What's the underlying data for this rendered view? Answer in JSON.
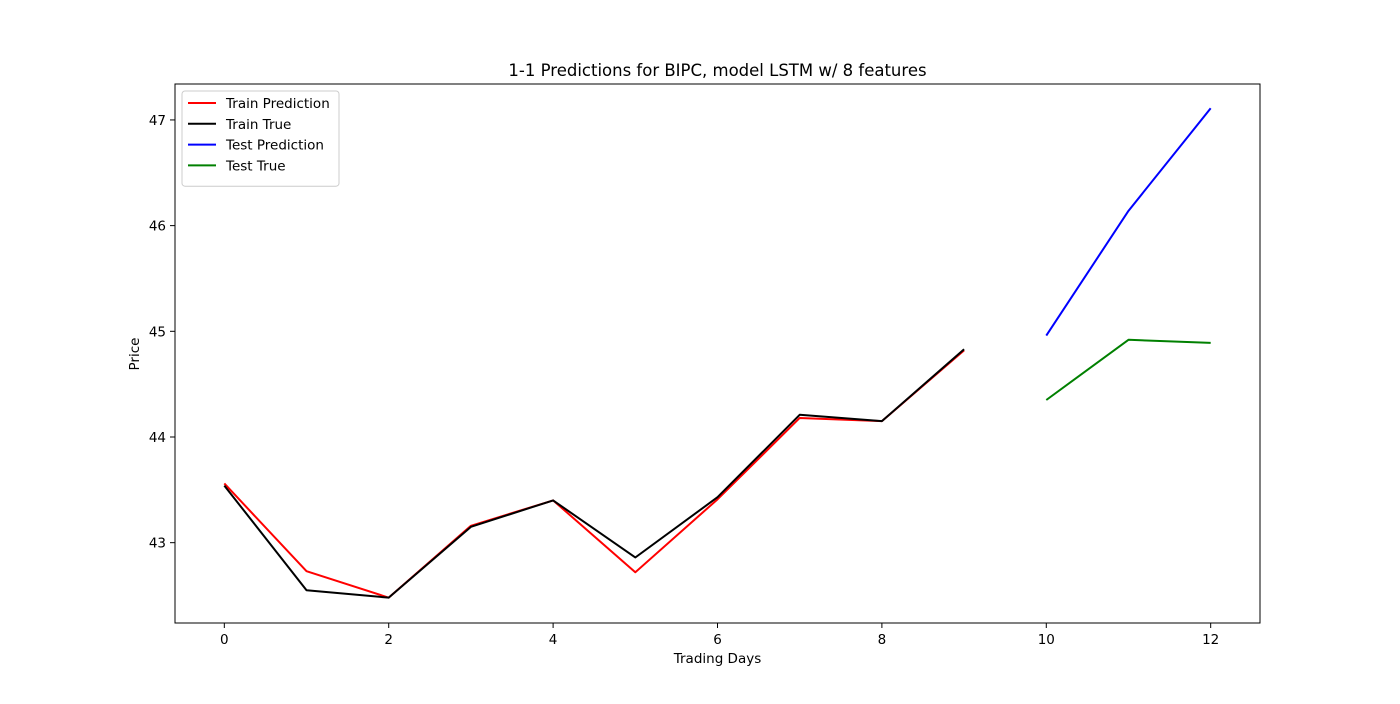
{
  "chart_data": {
    "type": "line",
    "title": "1-1 Predictions for BIPC, model LSTM w/ 8 features",
    "xlabel": "Trading Days",
    "ylabel": "Price",
    "xlim": [
      -0.6,
      12.6
    ],
    "ylim": [
      42.24,
      47.34
    ],
    "xticks": [
      0,
      2,
      4,
      6,
      8,
      10,
      12
    ],
    "yticks": [
      43,
      44,
      45,
      46,
      47
    ],
    "grid": false,
    "legend_position": "upper left",
    "series": [
      {
        "name": "Train Prediction",
        "color": "#ff0000",
        "x": [
          0,
          1,
          2,
          3,
          4,
          5,
          6,
          7,
          8,
          9
        ],
        "y": [
          43.56,
          42.73,
          42.48,
          43.16,
          43.4,
          42.72,
          43.41,
          44.18,
          44.15,
          44.82
        ]
      },
      {
        "name": "Train True",
        "color": "#000000",
        "x": [
          0,
          1,
          2,
          3,
          4,
          5,
          6,
          7,
          8,
          9
        ],
        "y": [
          43.54,
          42.55,
          42.48,
          43.15,
          43.4,
          42.86,
          43.43,
          44.21,
          44.15,
          44.83
        ]
      },
      {
        "name": "Test Prediction",
        "color": "#0000ff",
        "x": [
          10,
          11,
          12
        ],
        "y": [
          44.96,
          46.14,
          47.11
        ]
      },
      {
        "name": "Test True",
        "color": "#008000",
        "x": [
          10,
          11,
          12
        ],
        "y": [
          44.35,
          44.92,
          44.89
        ]
      }
    ]
  }
}
